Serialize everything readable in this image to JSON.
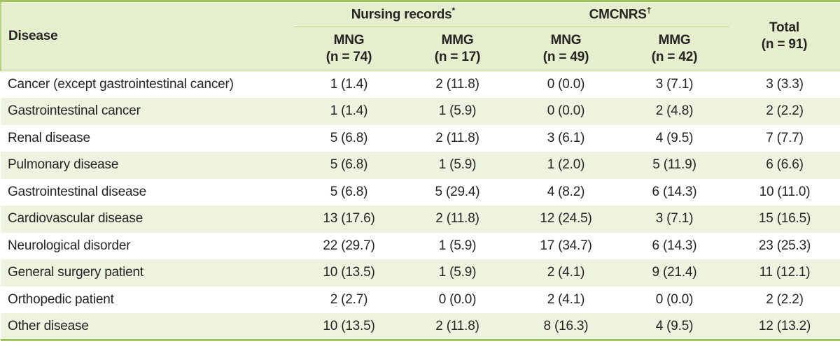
{
  "colors": {
    "border_green": "#a4c464",
    "side_green": "#b4cf7d",
    "rule_green": "#bcd585",
    "header_bg": "#e5eecd",
    "zebra_bg": "#eef3e0",
    "text": "#272323"
  },
  "table": {
    "disease_header": "Disease",
    "spanners": [
      {
        "label": "Nursing records",
        "sup": "*"
      },
      {
        "label": "CMCNRS",
        "sup": "†"
      }
    ],
    "subheaders": [
      {
        "line1": "MNG",
        "line2": "(n = 74)"
      },
      {
        "line1": "MMG",
        "line2": "(n = 17)"
      },
      {
        "line1": "MNG",
        "line2": "(n = 49)"
      },
      {
        "line1": "MMG",
        "line2": "(n = 42)"
      }
    ],
    "total_header": {
      "line1": "Total",
      "line2": "(n = 91)"
    },
    "rows": [
      {
        "disease": "Cancer (except gastrointestinal cancer)",
        "values": [
          "1 (1.4)",
          "2 (11.8)",
          "0 (0.0)",
          "3 (7.1)",
          "3 (3.3)"
        ]
      },
      {
        "disease": "Gastrointestinal cancer",
        "values": [
          "1 (1.4)",
          "1 (5.9)",
          "0 (0.0)",
          "2 (4.8)",
          "2 (2.2)"
        ]
      },
      {
        "disease": "Renal disease",
        "values": [
          "5 (6.8)",
          "2 (11.8)",
          "3 (6.1)",
          "4 (9.5)",
          "7 (7.7)"
        ]
      },
      {
        "disease": "Pulmonary disease",
        "values": [
          "5 (6.8)",
          "1 (5.9)",
          "1 (2.0)",
          "5 (11.9)",
          "6 (6.6)"
        ]
      },
      {
        "disease": "Gastrointestinal disease",
        "values": [
          "5 (6.8)",
          "5 (29.4)",
          "4 (8.2)",
          "6 (14.3)",
          "10 (11.0)"
        ]
      },
      {
        "disease": "Cardiovascular disease",
        "values": [
          "13 (17.6)",
          "2 (11.8)",
          "12 (24.5)",
          "3 (7.1)",
          "15 (16.5)"
        ]
      },
      {
        "disease": "Neurological disorder",
        "values": [
          "22 (29.7)",
          "1 (5.9)",
          "17 (34.7)",
          "6 (14.3)",
          "23 (25.3)"
        ]
      },
      {
        "disease": "General surgery patient",
        "values": [
          "10 (13.5)",
          "1 (5.9)",
          "2 (4.1)",
          "9 (21.4)",
          "11 (12.1)"
        ]
      },
      {
        "disease": "Orthopedic patient",
        "values": [
          "2 (2.7)",
          "0 (0.0)",
          "2 (4.1)",
          "0 (0.0)",
          "2 (2.2)"
        ]
      },
      {
        "disease": "Other disease",
        "values": [
          "10 (13.5)",
          "2 (11.8)",
          "8 (16.3)",
          "4 (9.5)",
          "12 (13.2)"
        ]
      }
    ]
  }
}
